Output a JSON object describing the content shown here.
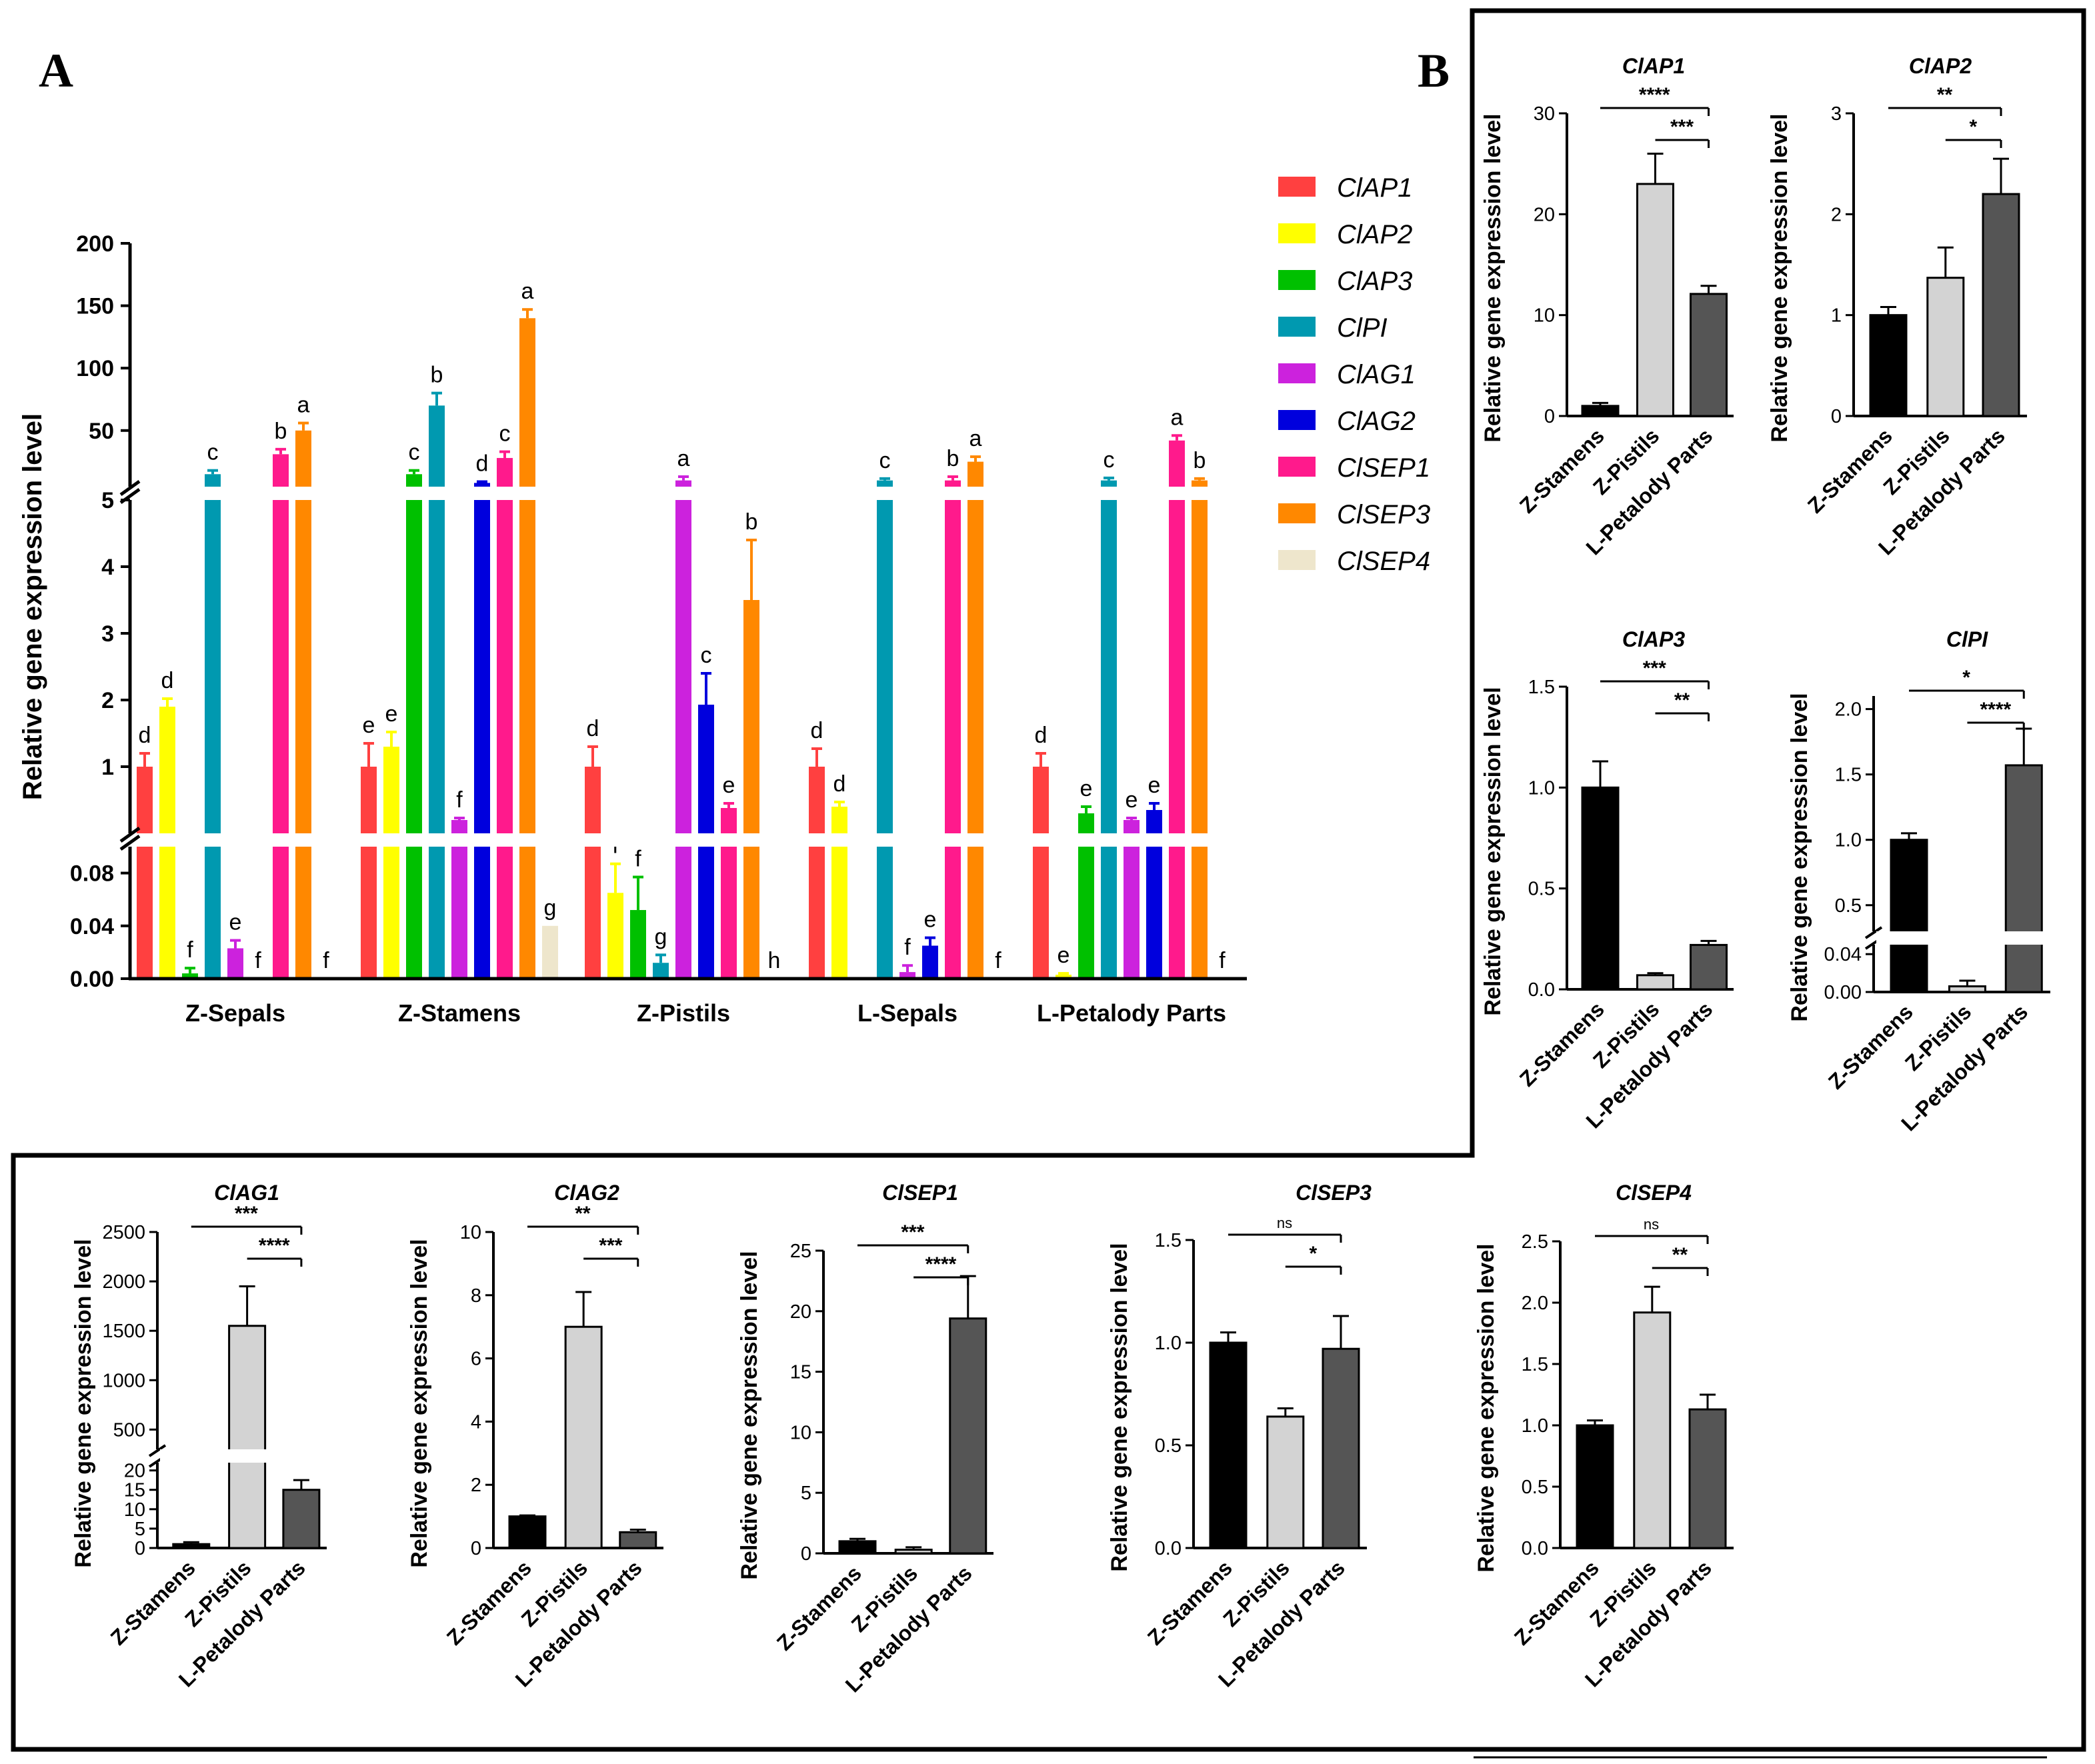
{
  "panel_labels": {
    "a": "A",
    "b": "B"
  },
  "colors": {
    "gene": [
      "#ff4040",
      "#ffff00",
      "#00c000",
      "#0099b0",
      "#cc22dd",
      "#0000dd",
      "#ff1a8c",
      "#ff8800",
      "#eee6cc"
    ],
    "tissue": [
      "#000000",
      "#d3d3d3",
      "#555555"
    ],
    "border": "#000000"
  },
  "chart_data": [
    {
      "id": "A",
      "type": "bar",
      "ylabel": "Relative gene expression level",
      "categories": [
        "Z-Sepals",
        "Z-Stamens",
        "Z-Pistils",
        "L-Sepals",
        "L-Petalody Parts"
      ],
      "series": [
        {
          "name": "ClAP1",
          "values": [
            1.0,
            1.0,
            1.0,
            1.0,
            1.0
          ],
          "errors": [
            0.2,
            0.35,
            0.3,
            0.27,
            0.2
          ],
          "letters": [
            "d",
            "e",
            "d",
            "d",
            "d"
          ]
        },
        {
          "name": "ClAP2",
          "values": [
            1.9,
            1.3,
            0.065,
            0.4,
            0.003
          ],
          "errors": [
            0.12,
            0.22,
            0.022,
            0.07,
            0.001
          ],
          "letters": [
            "d",
            "e",
            "f",
            "d",
            "e"
          ]
        },
        {
          "name": "ClAP3",
          "values": [
            0.004,
            15.0,
            0.052,
            0.0,
            0.3
          ],
          "errors": [
            0.004,
            3.0,
            0.025,
            0.0,
            0.1
          ],
          "letters": [
            "f",
            "c",
            "f",
            "",
            "e"
          ]
        },
        {
          "name": "ClPI",
          "values": [
            15.0,
            70.0,
            0.012,
            10.0,
            10.0
          ],
          "errors": [
            3.0,
            10.0,
            0.006,
            1.5,
            2.0
          ],
          "letters": [
            "c",
            "b",
            "g",
            "c",
            "c"
          ]
        },
        {
          "name": "ClAG1",
          "values": [
            0.023,
            0.2,
            10.0,
            0.005,
            0.2
          ],
          "errors": [
            0.006,
            0.03,
            3.0,
            0.005,
            0.03
          ],
          "letters": [
            "e",
            "f",
            "a",
            "f",
            "e"
          ]
        },
        {
          "name": "ClAG2",
          "values": [
            0.0,
            8.0,
            1.93,
            0.025,
            0.35
          ],
          "errors": [
            0.0,
            1.0,
            0.47,
            0.006,
            0.1
          ],
          "letters": [
            "f",
            "d",
            "c",
            "e",
            "e"
          ]
        },
        {
          "name": "ClSEP1",
          "values": [
            31.0,
            28.0,
            0.38,
            10.0,
            42.0
          ],
          "errors": [
            4.0,
            5.0,
            0.07,
            3.0,
            4.0
          ],
          "letters": [
            "b",
            "c",
            "e",
            "b",
            "a"
          ]
        },
        {
          "name": "ClSEP3",
          "values": [
            50.0,
            140.0,
            3.5,
            25.0,
            10.0
          ],
          "errors": [
            6.0,
            7.0,
            0.9,
            4.0,
            1.5
          ],
          "letters": [
            "a",
            "a",
            "b",
            "a",
            "b"
          ]
        },
        {
          "name": "ClSEP4",
          "values": [
            0.0,
            0.04,
            0.0,
            0.0,
            0.0
          ],
          "errors": [
            0.0,
            0.0,
            0.0,
            0.0,
            0.0
          ],
          "letters": [
            "f",
            "g",
            "h",
            "f",
            "f"
          ]
        }
      ],
      "y_axis_segments": [
        {
          "range": [
            0,
            0.1
          ],
          "ticks": [
            0.0,
            0.04,
            0.08
          ],
          "tick_labels": [
            "0.00",
            "0.04",
            "0.08"
          ]
        },
        {
          "range": [
            0,
            5
          ],
          "ticks": [
            1,
            2,
            3,
            4,
            5
          ],
          "tick_labels": [
            "1",
            "2",
            "3",
            "4",
            "5"
          ]
        },
        {
          "range": [
            5,
            200
          ],
          "ticks": [
            50,
            100,
            150,
            200
          ],
          "tick_labels": [
            "50",
            "100",
            "150",
            "200"
          ]
        }
      ],
      "legend_position": "right",
      "grid": false
    },
    {
      "id": "ClAP1",
      "type": "bar",
      "title": "ClAP1",
      "ylabel": "Relative gene expression level",
      "categories": [
        "Z-Stamens",
        "Z-Pistils",
        "L-Petalody Parts"
      ],
      "values": [
        1.0,
        23.0,
        12.1
      ],
      "errors": [
        0.3,
        3.0,
        0.8
      ],
      "ylim": [
        0,
        30
      ],
      "yticks": [
        "0",
        "10",
        "20",
        "30"
      ],
      "significance": [
        {
          "from": "Z-Stamens",
          "to": "L-Petalody Parts",
          "label": "****"
        },
        {
          "from": "Z-Pistils",
          "to": "L-Petalody Parts",
          "label": "***"
        }
      ]
    },
    {
      "id": "ClAP2",
      "type": "bar",
      "title": "ClAP2",
      "ylabel": "Relative gene expression level",
      "categories": [
        "Z-Stamens",
        "Z-Pistils",
        "L-Petalody Parts"
      ],
      "values": [
        1.0,
        1.37,
        2.2
      ],
      "errors": [
        0.08,
        0.3,
        0.35
      ],
      "ylim": [
        0,
        3
      ],
      "yticks": [
        "0",
        "1",
        "2",
        "3"
      ],
      "significance": [
        {
          "from": "Z-Stamens",
          "to": "L-Petalody Parts",
          "label": "**"
        },
        {
          "from": "Z-Pistils",
          "to": "L-Petalody Parts",
          "label": "*"
        }
      ]
    },
    {
      "id": "ClAP3",
      "type": "bar",
      "title": "ClAP3",
      "ylabel": "Relative gene expression level",
      "categories": [
        "Z-Stamens",
        "Z-Pistils",
        "L-Petalody Parts"
      ],
      "values": [
        1.0,
        0.07,
        0.22
      ],
      "errors": [
        0.13,
        0.01,
        0.02
      ],
      "ylim": [
        0,
        1.5
      ],
      "yticks": [
        "0.0",
        "0.5",
        "1.0",
        "1.5"
      ],
      "significance": [
        {
          "from": "Z-Stamens",
          "to": "L-Petalody Parts",
          "label": "***"
        },
        {
          "from": "Z-Pistils",
          "to": "L-Petalody Parts",
          "label": "**"
        }
      ]
    },
    {
      "id": "ClPI",
      "type": "bar",
      "title": "ClPI",
      "ylabel": "Relative gene expression level",
      "categories": [
        "Z-Stamens",
        "Z-Pistils",
        "L-Petalody Parts"
      ],
      "values": [
        1.0,
        0.006,
        1.57
      ],
      "errors": [
        0.05,
        0.006,
        0.28
      ],
      "y_axis_segments": [
        {
          "range": [
            0,
            0.05
          ],
          "ticks": [
            0.0,
            0.04
          ],
          "tick_labels": [
            "0.00",
            "0.04"
          ]
        },
        {
          "range": [
            0.3,
            2.1
          ],
          "ticks": [
            0.5,
            1.0,
            1.5,
            2.0
          ],
          "tick_labels": [
            "0.5",
            "1.0",
            "1.5",
            "2.0"
          ]
        }
      ],
      "significance": [
        {
          "from": "Z-Stamens",
          "to": "L-Petalody Parts",
          "label": "*"
        },
        {
          "from": "Z-Pistils",
          "to": "L-Petalody Parts",
          "label": "****"
        }
      ]
    },
    {
      "id": "ClAG1",
      "type": "bar",
      "title": "ClAG1",
      "ylabel": "Relative gene expression level",
      "categories": [
        "Z-Stamens",
        "Z-Pistils",
        "L-Petalody Parts"
      ],
      "values": [
        1.0,
        1550.0,
        15.0
      ],
      "errors": [
        0.5,
        400.0,
        2.5
      ],
      "y_axis_segments": [
        {
          "range": [
            0,
            22
          ],
          "ticks": [
            0,
            5,
            10,
            15,
            20
          ],
          "tick_labels": [
            "0",
            "5",
            "10",
            "15",
            "20"
          ]
        },
        {
          "range": [
            300,
            2500
          ],
          "ticks": [
            500,
            1000,
            1500,
            2000,
            2500
          ],
          "tick_labels": [
            "500",
            "1000",
            "1500",
            "2000",
            "2500"
          ]
        }
      ],
      "significance": [
        {
          "from": "Z-Stamens",
          "to": "L-Petalody Parts",
          "label": "***"
        },
        {
          "from": "Z-Pistils",
          "to": "L-Petalody Parts",
          "label": "****"
        }
      ]
    },
    {
      "id": "ClAG2",
      "type": "bar",
      "title": "ClAG2",
      "ylabel": "Relative gene expression level",
      "categories": [
        "Z-Stamens",
        "Z-Pistils",
        "L-Petalody Parts"
      ],
      "values": [
        1.0,
        7.0,
        0.5
      ],
      "errors": [
        0.03,
        1.1,
        0.08
      ],
      "ylim": [
        0,
        10
      ],
      "yticks": [
        "0",
        "2",
        "4",
        "6",
        "8",
        "10"
      ],
      "significance": [
        {
          "from": "Z-Stamens",
          "to": "L-Petalody Parts",
          "label": "**"
        },
        {
          "from": "Z-Pistils",
          "to": "L-Petalody Parts",
          "label": "***"
        }
      ]
    },
    {
      "id": "ClSEP1",
      "type": "bar",
      "title": "ClSEP1",
      "ylabel": "Relative gene expression level",
      "categories": [
        "Z-Stamens",
        "Z-Pistils",
        "L-Petalody Parts"
      ],
      "values": [
        1.0,
        0.3,
        19.4
      ],
      "errors": [
        0.2,
        0.2,
        3.5
      ],
      "ylim": [
        0,
        25
      ],
      "yticks": [
        "0",
        "5",
        "10",
        "15",
        "20",
        "25"
      ],
      "significance": [
        {
          "from": "Z-Stamens",
          "to": "L-Petalody Parts",
          "label": "***"
        },
        {
          "from": "Z-Pistils",
          "to": "L-Petalody Parts",
          "label": "****"
        }
      ]
    },
    {
      "id": "ClSEP3",
      "type": "bar",
      "title": "ClSEP3",
      "ylabel": "Relative gene expression level",
      "categories": [
        "Z-Stamens",
        "Z-Pistils",
        "L-Petalody Parts"
      ],
      "values": [
        1.0,
        0.64,
        0.97
      ],
      "errors": [
        0.05,
        0.04,
        0.16
      ],
      "ylim": [
        0,
        1.5
      ],
      "yticks": [
        "0.0",
        "0.5",
        "1.0",
        "1.5"
      ],
      "significance": [
        {
          "from": "Z-Stamens",
          "to": "L-Petalody Parts",
          "label": "ns"
        },
        {
          "from": "Z-Pistils",
          "to": "L-Petalody Parts",
          "label": "*"
        }
      ]
    },
    {
      "id": "ClSEP4",
      "type": "bar",
      "title": "ClSEP4",
      "ylabel": "Relative gene expression level",
      "categories": [
        "Z-Stamens",
        "Z-Pistils",
        "L-Petalody Parts"
      ],
      "values": [
        1.0,
        1.92,
        1.13
      ],
      "errors": [
        0.04,
        0.21,
        0.12
      ],
      "ylim": [
        0,
        2.5
      ],
      "yticks": [
        "0.0",
        "0.5",
        "1.0",
        "1.5",
        "2.0",
        "2.5"
      ],
      "significance": [
        {
          "from": "Z-Stamens",
          "to": "L-Petalody Parts",
          "label": "ns"
        },
        {
          "from": "Z-Pistils",
          "to": "L-Petalody Parts",
          "label": "**"
        }
      ]
    }
  ]
}
